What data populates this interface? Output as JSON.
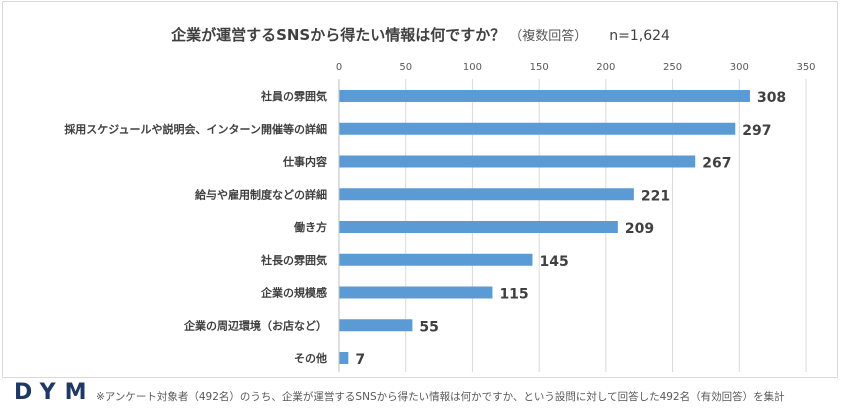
{
  "title": {
    "main": "企業が運営するSNSから得たい情報は何ですか？",
    "sub": "（複数回答）",
    "n": "n=1,624"
  },
  "footer": {
    "logo": "DYM",
    "note": "※アンケート対象者（492名）のうち、企業が運営するSNSから得たい情報は何かですか、という設問に対して回答した492名（有効回答）を集計"
  },
  "colors": {
    "bar": "#5b9bd5",
    "grid": "#d9d9d9",
    "text": "#404040"
  },
  "chart_data": {
    "type": "bar",
    "orientation": "horizontal",
    "categories": [
      "社員の雰囲気",
      "採用スケジュールや説明会、インターン開催等の詳細",
      "仕事内容",
      "給与や雇用制度などの詳細",
      "働き方",
      "社長の雰囲気",
      "企業の規模感",
      "企業の周辺環境（お店など）",
      "その他"
    ],
    "values": [
      308,
      297,
      267,
      221,
      209,
      145,
      115,
      55,
      7
    ],
    "ticks": [
      0,
      50,
      100,
      150,
      200,
      250,
      300,
      350
    ],
    "xlim": [
      0,
      350
    ],
    "axis_position": "top",
    "grid": true,
    "legend": "none"
  }
}
